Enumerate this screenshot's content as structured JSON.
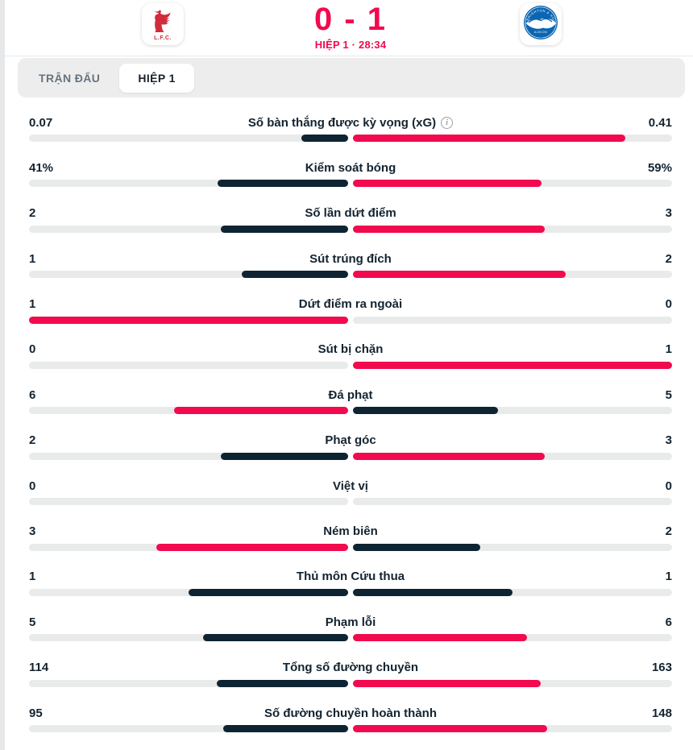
{
  "colors": {
    "accent": "#f20a4e",
    "navy": "#0e2433",
    "track": "#e9eaea",
    "crest_red": "#d22b3c",
    "crest_blue": "#0a66b2"
  },
  "header": {
    "score": "0 - 1",
    "status": "HIỆP 1 · 28:34",
    "home_crest_text": "L.F.C.",
    "away_crest_arc_text": "BRIGHTON & HOVE",
    "away_crest_bottom_text": "ALBION"
  },
  "tabs": [
    {
      "label": "TRẬN ĐẤU",
      "active": false
    },
    {
      "label": "HIỆP 1",
      "active": true
    }
  ],
  "stats": [
    {
      "label": "Số bàn thắng được kỳ vọng (xG)",
      "home": "0.07",
      "away": "0.41",
      "home_num": 0.07,
      "away_num": 0.41,
      "has_info": true
    },
    {
      "label": "Kiểm soát bóng",
      "home": "41%",
      "away": "59%",
      "home_num": 41,
      "away_num": 59,
      "has_info": false
    },
    {
      "label": "Số lần dứt điểm",
      "home": "2",
      "away": "3",
      "home_num": 2,
      "away_num": 3,
      "has_info": false
    },
    {
      "label": "Sút trúng đích",
      "home": "1",
      "away": "2",
      "home_num": 1,
      "away_num": 2,
      "has_info": false
    },
    {
      "label": "Dứt điểm ra ngoài",
      "home": "1",
      "away": "0",
      "home_num": 1,
      "away_num": 0,
      "has_info": false
    },
    {
      "label": "Sút bị chặn",
      "home": "0",
      "away": "1",
      "home_num": 0,
      "away_num": 1,
      "has_info": false
    },
    {
      "label": "Đá phạt",
      "home": "6",
      "away": "5",
      "home_num": 6,
      "away_num": 5,
      "has_info": false
    },
    {
      "label": "Phạt góc",
      "home": "2",
      "away": "3",
      "home_num": 2,
      "away_num": 3,
      "has_info": false
    },
    {
      "label": "Việt vị",
      "home": "0",
      "away": "0",
      "home_num": 0,
      "away_num": 0,
      "has_info": false
    },
    {
      "label": "Ném biên",
      "home": "3",
      "away": "2",
      "home_num": 3,
      "away_num": 2,
      "has_info": false
    },
    {
      "label": "Thủ môn Cứu thua",
      "home": "1",
      "away": "1",
      "home_num": 1,
      "away_num": 1,
      "has_info": false
    },
    {
      "label": "Phạm lỗi",
      "home": "5",
      "away": "6",
      "home_num": 5,
      "away_num": 6,
      "has_info": false
    },
    {
      "label": "Tổng số đường chuyền",
      "home": "114",
      "away": "163",
      "home_num": 114,
      "away_num": 163,
      "has_info": false
    },
    {
      "label": "Số đường chuyền hoàn thành",
      "home": "95",
      "away": "148",
      "home_num": 95,
      "away_num": 148,
      "has_info": false
    }
  ]
}
